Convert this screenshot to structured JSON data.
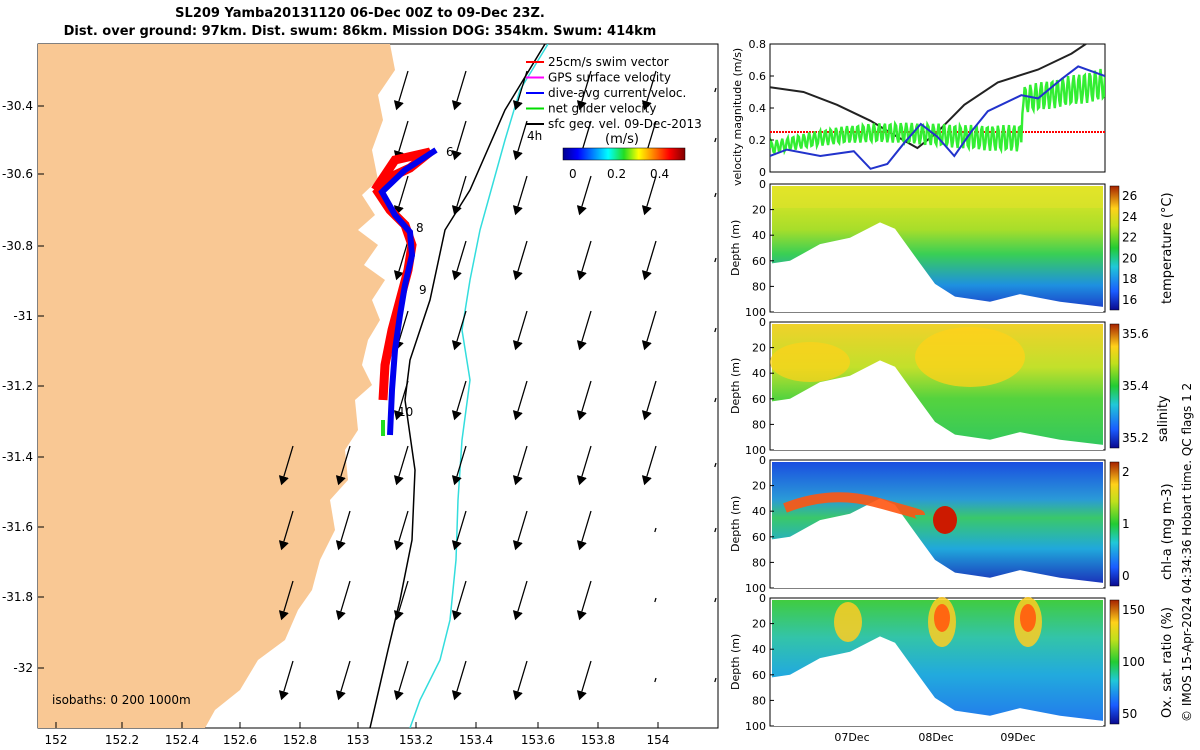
{
  "header": {
    "line1": "SL209 Yamba20131120 06-Dec 00Z to 09-Dec 23Z.",
    "line2": "Dist. over ground: 97km. Dist. swum: 86km. Mission DOG: 354km. Swum: 414km"
  },
  "map": {
    "x_ticks": [
      "152",
      "152.2",
      "152.4",
      "152.6",
      "152.8",
      "153",
      "153.2",
      "153.4",
      "153.6",
      "153.8",
      "154"
    ],
    "y_ticks": [
      "-30.4",
      "-30.6",
      "-30.8",
      "-31",
      "-31.2",
      "-31.4",
      "-31.6",
      "-31.8",
      "-32"
    ],
    "legend": [
      "25cm/s swim vector",
      "GPS surface velocity",
      "dive-avg current veloc.",
      "net glider velocity",
      "sfc geo. vel. 09-Dec-2013"
    ],
    "legend_colors": [
      "#ff0000",
      "#ff00ff",
      "#0000ff",
      "#00dd00",
      "#000000"
    ],
    "legend_side": "4h",
    "colorbar_label": "(m/s)",
    "colorbar_ticks": [
      "0",
      "0.2",
      "0.4"
    ],
    "isobaths_label": "isobaths: 0   200  1000m",
    "day_labels": [
      "6",
      "8",
      "9",
      "10"
    ],
    "land_color": "#f9c894"
  },
  "panels": {
    "velocity": {
      "ylabel": "velocity magnitude (m/s)",
      "ticks": [
        "0",
        "0.2",
        "0.4",
        "0.6",
        "0.8"
      ]
    },
    "temperature": {
      "ylabel": "Depth (m)",
      "cblabel": "temperature (°C)",
      "cbticks": [
        "16",
        "18",
        "20",
        "22",
        "24",
        "26"
      ],
      "depth_ticks": [
        "0",
        "20",
        "40",
        "60",
        "80",
        "100"
      ]
    },
    "salinity": {
      "ylabel": "Depth (m)",
      "cblabel": "salinity",
      "cbticks": [
        "35.2",
        "35.4",
        "35.6"
      ],
      "depth_ticks": [
        "0",
        "20",
        "40",
        "60",
        "80",
        "100"
      ]
    },
    "chla": {
      "ylabel": "Depth (m)",
      "cblabel": "chl-a (mg m-3)",
      "cbticks": [
        "0",
        "1",
        "2"
      ],
      "depth_ticks": [
        "0",
        "20",
        "40",
        "60",
        "80",
        "100"
      ]
    },
    "oxygen": {
      "ylabel": "Depth (m)",
      "cblabel": "Ox. sat. ratio (%)",
      "cbticks": [
        "50",
        "100",
        "150"
      ],
      "depth_ticks": [
        "0",
        "20",
        "40",
        "60",
        "80",
        "100"
      ]
    },
    "x_dates": [
      "07Dec",
      "08Dec",
      "09Dec"
    ]
  },
  "footer": {
    "imos": "© IMOS 15-Apr-2024 04:34:36 Hobart time. QC flags 1  2"
  },
  "chart_data": [
    {
      "type": "line",
      "title": "velocity magnitude",
      "ylabel": "velocity magnitude (m/s)",
      "ylim": [
        0,
        0.8
      ],
      "x": [
        "06-Dec 00Z",
        "07-Dec 12Z",
        "08-Dec 00Z",
        "09-Dec 23Z"
      ],
      "series": [
        {
          "name": "25cm/s swim vector",
          "values": [
            0.25,
            0.25,
            0.25,
            0.25
          ]
        },
        {
          "name": "net glider velocity",
          "values": [
            0.15,
            0.25,
            0.3,
            0.45
          ]
        },
        {
          "name": "dive-avg current veloc.",
          "values": [
            0.1,
            0.05,
            0.3,
            0.6
          ]
        },
        {
          "name": "sfc geo. vel. 09-Dec-2013",
          "values": [
            0.53,
            0.2,
            0.45,
            0.85
          ]
        }
      ]
    },
    {
      "type": "heatmap",
      "ylabel": "Depth (m)",
      "cbar_label": "temperature (°C)",
      "clim": [
        15,
        26.5
      ]
    },
    {
      "type": "heatmap",
      "ylabel": "Depth (m)",
      "cbar_label": "salinity",
      "clim": [
        35.15,
        35.75
      ]
    },
    {
      "type": "heatmap",
      "ylabel": "Depth (m)",
      "cbar_label": "chl-a (mg m-3)",
      "clim": [
        0,
        2
      ]
    },
    {
      "type": "heatmap",
      "ylabel": "Depth (m)",
      "cbar_label": "Ox. sat. ratio (%)",
      "clim": [
        25,
        175
      ]
    }
  ]
}
